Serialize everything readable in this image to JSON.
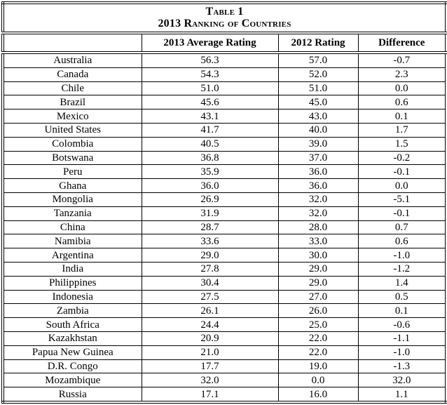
{
  "table": {
    "title_line1": "Table 1",
    "title_line2": "2013 Ranking of Countries",
    "headers": [
      "",
      "2013 Average Rating",
      "2012 Rating",
      "Difference"
    ],
    "rows": [
      {
        "country": "Australia",
        "rating_2013": "56.3",
        "rating_2012": "57.0",
        "difference": "-0.7"
      },
      {
        "country": "Canada",
        "rating_2013": "54.3",
        "rating_2012": "52.0",
        "difference": "2.3"
      },
      {
        "country": "Chile",
        "rating_2013": "51.0",
        "rating_2012": "51.0",
        "difference": "0.0"
      },
      {
        "country": "Brazil",
        "rating_2013": "45.6",
        "rating_2012": "45.0",
        "difference": "0.6"
      },
      {
        "country": "Mexico",
        "rating_2013": "43.1",
        "rating_2012": "43.0",
        "difference": "0.1"
      },
      {
        "country": "United States",
        "rating_2013": "41.7",
        "rating_2012": "40.0",
        "difference": "1.7"
      },
      {
        "country": "Colombia",
        "rating_2013": "40.5",
        "rating_2012": "39.0",
        "difference": "1.5"
      },
      {
        "country": "Botswana",
        "rating_2013": "36.8",
        "rating_2012": "37.0",
        "difference": "-0.2"
      },
      {
        "country": "Peru",
        "rating_2013": "35.9",
        "rating_2012": "36.0",
        "difference": "-0.1"
      },
      {
        "country": "Ghana",
        "rating_2013": "36.0",
        "rating_2012": "36.0",
        "difference": "0.0"
      },
      {
        "country": "Mongolia",
        "rating_2013": "26.9",
        "rating_2012": "32.0",
        "difference": "-5.1"
      },
      {
        "country": "Tanzania",
        "rating_2013": "31.9",
        "rating_2012": "32.0",
        "difference": "-0.1"
      },
      {
        "country": "China",
        "rating_2013": "28.7",
        "rating_2012": "28.0",
        "difference": "0.7"
      },
      {
        "country": "Namibia",
        "rating_2013": "33.6",
        "rating_2012": "33.0",
        "difference": "0.6"
      },
      {
        "country": "Argentina",
        "rating_2013": "29.0",
        "rating_2012": "30.0",
        "difference": "-1.0"
      },
      {
        "country": "India",
        "rating_2013": "27.8",
        "rating_2012": "29.0",
        "difference": "-1.2"
      },
      {
        "country": "Philippines",
        "rating_2013": "30.4",
        "rating_2012": "29.0",
        "difference": "1.4"
      },
      {
        "country": "Indonesia",
        "rating_2013": "27.5",
        "rating_2012": "27.0",
        "difference": "0.5"
      },
      {
        "country": "Zambia",
        "rating_2013": "26.1",
        "rating_2012": "26.0",
        "difference": "0.1"
      },
      {
        "country": "South Africa",
        "rating_2013": "24.4",
        "rating_2012": "25.0",
        "difference": "-0.6"
      },
      {
        "country": "Kazakhstan",
        "rating_2013": "20.9",
        "rating_2012": "22.0",
        "difference": "-1.1"
      },
      {
        "country": "Papua New Guinea",
        "rating_2013": "21.0",
        "rating_2012": "22.0",
        "difference": "-1.0"
      },
      {
        "country": "D.R. Congo",
        "rating_2013": "17.7",
        "rating_2012": "19.0",
        "difference": "-1.3"
      },
      {
        "country": "Mozambique",
        "rating_2013": "32.0",
        "rating_2012": "0.0",
        "difference": "32.0"
      },
      {
        "country": "Russia",
        "rating_2013": "17.1",
        "rating_2012": "16.0",
        "difference": "1.1"
      }
    ]
  }
}
